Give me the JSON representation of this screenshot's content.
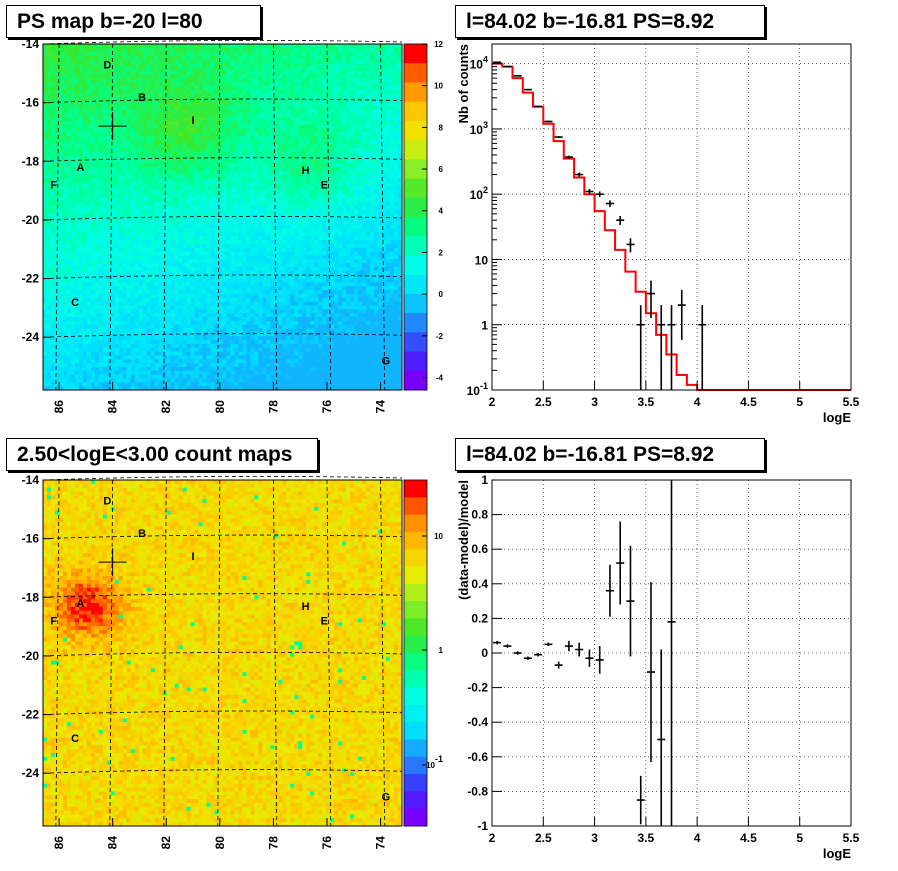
{
  "chart_data": [
    {
      "type": "heatmap",
      "title": "PS map b=-20 l=80",
      "x_ticks": [
        "86",
        "84",
        "82",
        "80",
        "78",
        "76",
        "74"
      ],
      "y_ticks": [
        "-14",
        "-16",
        "-18",
        "-20",
        "-22",
        "-24"
      ],
      "colorbar_ticks": [
        "12",
        "10",
        "8",
        "6",
        "4",
        "2",
        "0",
        "-2",
        "-4"
      ],
      "colorbar_range": [
        -5,
        12
      ],
      "markers": [
        {
          "label": "D",
          "l": 84.2,
          "b": -14.7
        },
        {
          "label": "B",
          "l": 82.9,
          "b": -15.8
        },
        {
          "label": "I",
          "l": 81.0,
          "b": -16.6
        },
        {
          "label": "A",
          "l": 85.2,
          "b": -18.2
        },
        {
          "label": "F",
          "l": 86.2,
          "b": -18.8
        },
        {
          "label": "H",
          "l": 76.8,
          "b": -18.3
        },
        {
          "label": "E",
          "l": 76.1,
          "b": -18.8
        },
        {
          "label": "C",
          "l": 85.4,
          "b": -22.8
        },
        {
          "label": "G",
          "l": 73.8,
          "b": -24.8
        }
      ],
      "cross": {
        "l": 84.0,
        "b": -16.8
      }
    },
    {
      "type": "line",
      "title": "l=84.02 b=-16.81 PS=8.92",
      "xlabel": "logE",
      "ylabel": "Nb of counts",
      "xlim": [
        2,
        5.5
      ],
      "ylim": [
        0.1,
        20000
      ],
      "yscale": "log",
      "x_ticks": [
        "2",
        "2.5",
        "3",
        "3.5",
        "4",
        "4.5",
        "5",
        "5.5"
      ],
      "y_ticks": [
        "10^4",
        "10^3",
        "10^2",
        "10",
        "1",
        "10^-1"
      ],
      "series": [
        {
          "style": "points",
          "x": [
            2.05,
            2.15,
            2.25,
            2.35,
            2.45,
            2.55,
            2.65,
            2.75,
            2.85,
            2.95,
            3.05,
            3.15,
            3.25,
            3.35,
            3.45,
            3.55,
            3.65,
            3.75,
            3.85,
            4.05
          ],
          "y": [
            10500,
            9000,
            6500,
            4000,
            2200,
            1300,
            750,
            370,
            200,
            110,
            100,
            72,
            40,
            17,
            1,
            3,
            1,
            1,
            2,
            1
          ]
        },
        {
          "style": "step",
          "color": "#ff0000",
          "x": [
            2.0,
            2.1,
            2.2,
            2.3,
            2.4,
            2.5,
            2.6,
            2.7,
            2.8,
            2.9,
            3.0,
            3.1,
            3.2,
            3.3,
            3.4,
            3.5,
            3.6,
            3.7,
            3.8,
            3.9,
            4.0,
            4.1,
            4.2,
            4.3,
            4.4,
            4.5,
            4.6,
            4.7,
            4.8,
            4.9,
            5.0,
            5.1,
            5.2,
            5.3,
            5.4
          ],
          "y": [
            10000,
            9000,
            6000,
            3600,
            2200,
            1200,
            650,
            350,
            180,
            100,
            55,
            28,
            14,
            6.5,
            3.2,
            1.5,
            0.7,
            0.35,
            0.17,
            0.12,
            0.1,
            0.1,
            0.1,
            0.1,
            0.1,
            0.1,
            0.1,
            0.1,
            0.1,
            0.1,
            0.1,
            0.1,
            0.1,
            0.1,
            0.1
          ]
        }
      ]
    },
    {
      "type": "heatmap",
      "title": "2.50<logE<3.00 count maps",
      "x_ticks": [
        "86",
        "84",
        "82",
        "80",
        "78",
        "76",
        "74"
      ],
      "y_ticks": [
        "-14",
        "-16",
        "-18",
        "-20",
        "-22",
        "-24"
      ],
      "colorbar_ticks": [
        "10",
        "1",
        "10^-1"
      ],
      "colorbar_scale": "log"
    },
    {
      "type": "scatter",
      "title": "l=84.02 b=-16.81 PS=8.92",
      "xlabel": "logE",
      "ylabel": "(data-model)/model",
      "xlim": [
        2,
        5.5
      ],
      "ylim": [
        -1,
        1
      ],
      "x_ticks": [
        "2",
        "2.5",
        "3",
        "3.5",
        "4",
        "4.5",
        "5",
        "5.5"
      ],
      "y_ticks": [
        "1",
        "0.8",
        "0.6",
        "0.4",
        "0.2",
        "0",
        "-0.2",
        "-0.4",
        "-0.6",
        "-0.8",
        "-1"
      ],
      "points": [
        {
          "x": 2.05,
          "y": 0.06,
          "err": 0.01
        },
        {
          "x": 2.15,
          "y": 0.04,
          "err": 0.01
        },
        {
          "x": 2.25,
          "y": 0.0,
          "err": 0.01
        },
        {
          "x": 2.35,
          "y": -0.03,
          "err": 0.01
        },
        {
          "x": 2.45,
          "y": -0.01,
          "err": 0.01
        },
        {
          "x": 2.55,
          "y": 0.05,
          "err": 0.01
        },
        {
          "x": 2.65,
          "y": -0.07,
          "err": 0.02
        },
        {
          "x": 2.75,
          "y": 0.04,
          "err": 0.03
        },
        {
          "x": 2.85,
          "y": 0.02,
          "err": 0.04
        },
        {
          "x": 2.95,
          "y": -0.03,
          "err": 0.05
        },
        {
          "x": 3.05,
          "y": -0.04,
          "err": 0.08
        },
        {
          "x": 3.15,
          "y": 0.36,
          "err": 0.15
        },
        {
          "x": 3.25,
          "y": 0.52,
          "err": 0.24
        },
        {
          "x": 3.35,
          "y": 0.3,
          "err": 0.32
        },
        {
          "x": 3.45,
          "y": -0.85,
          "err": 0.14
        },
        {
          "x": 3.55,
          "y": -0.11,
          "err": 0.52
        },
        {
          "x": 3.65,
          "y": -0.5,
          "err": 0.52
        },
        {
          "x": 3.75,
          "y": 0.18,
          "err": 1.2
        }
      ]
    }
  ],
  "colors": {
    "series_line": "#ff0000",
    "points": "#000000",
    "frame": "#000000",
    "grid": "#000000"
  }
}
